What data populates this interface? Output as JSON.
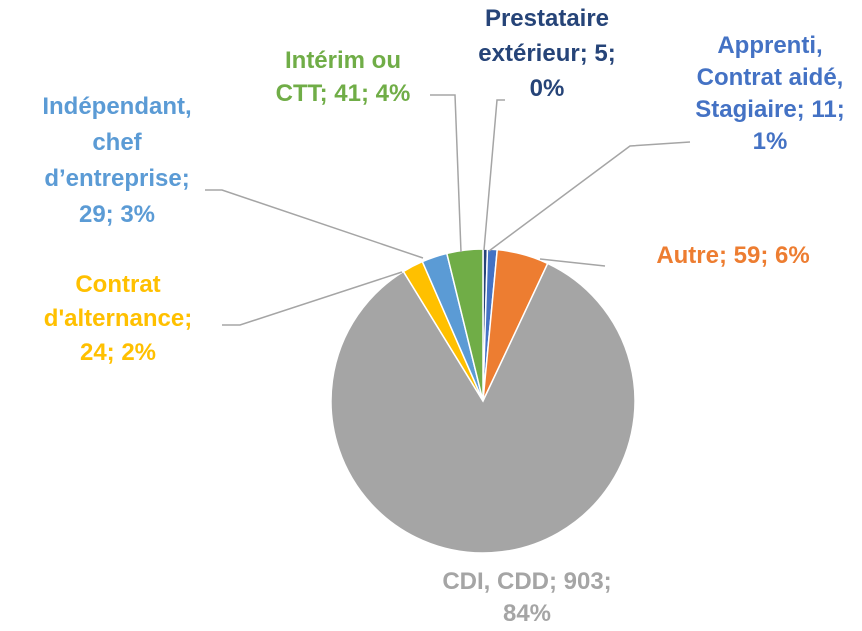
{
  "chart_data": {
    "type": "pie",
    "values": [
      5,
      11,
      59,
      903,
      24,
      29,
      41
    ],
    "value_labels": [
      [
        "Prestataire",
        "extérieur; 5;",
        "0%"
      ],
      [
        "Apprenti,",
        "Contrat aidé,",
        "Stagiaire; 11;",
        "1%"
      ],
      [
        "Autre; 59; 6%"
      ],
      [
        "CDI, CDD; 903;",
        "84%"
      ],
      [
        "Contrat",
        "d'alternance;",
        "24; 2%"
      ],
      [
        "Indépendant,",
        "chef",
        "d’entreprise;",
        "29; 3%"
      ],
      [
        "Intérim ou",
        "CTT; 41; 4%"
      ]
    ],
    "colors": [
      "#264478",
      "#4472c4",
      "#ed7d31",
      "#a5a5a5",
      "#ffc000",
      "#5b9bd5",
      "#70ad47"
    ]
  }
}
